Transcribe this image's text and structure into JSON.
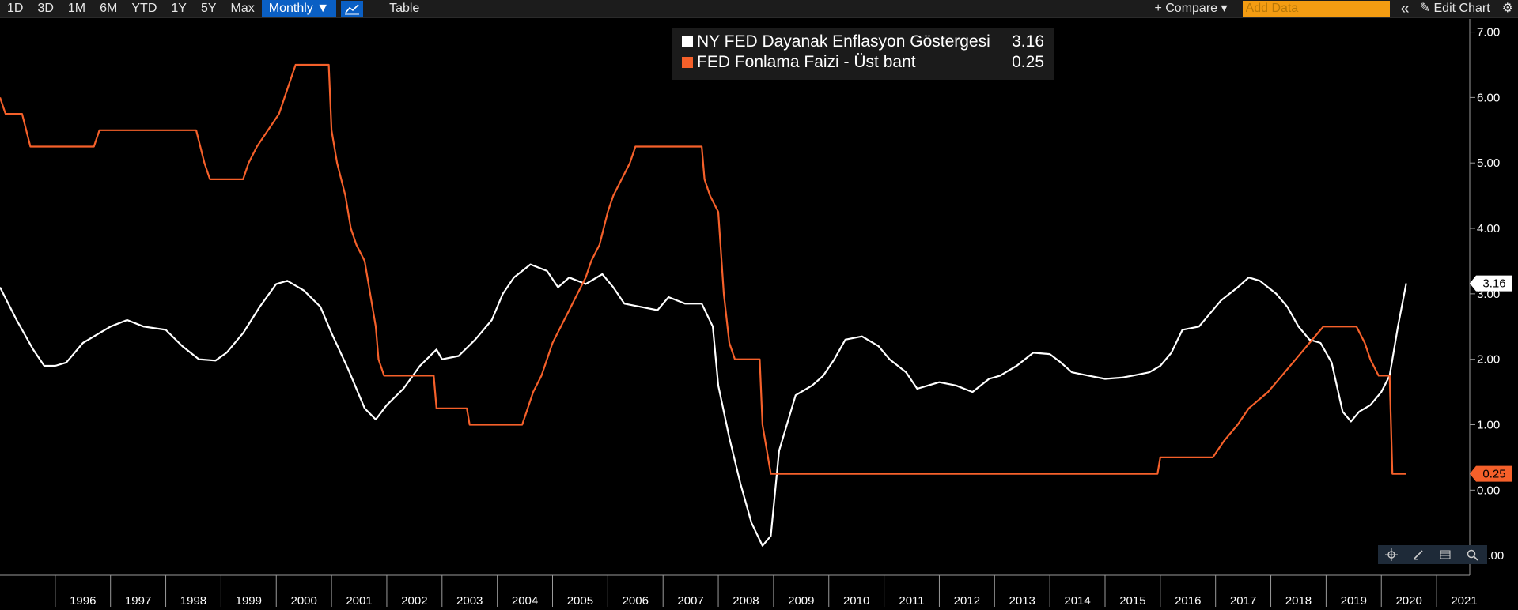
{
  "toolbar": {
    "ranges": [
      "1D",
      "3D",
      "1M",
      "6M",
      "YTD",
      "1Y",
      "5Y",
      "Max"
    ],
    "frequency": "Monthly ▼",
    "chart_icon": "line-chart-icon",
    "table_label": "Table",
    "compare_label": "+ Compare ▾",
    "add_data_placeholder": "Add Data",
    "collapse_glyph": "«",
    "edit_chart_label": "✎ Edit Chart",
    "settings_glyph": "⚙"
  },
  "legend": {
    "items": [
      {
        "label": "NY FED Dayanak Enflasyon Göstergesi",
        "value": "3.16",
        "color": "#ffffff"
      },
      {
        "label": "FED Fonlama Faizi - Üst bant",
        "value": "0.25",
        "color": "#f5602a"
      }
    ]
  },
  "zoom_tools": [
    "crosshair-icon",
    "draw-icon",
    "table-icon",
    "zoom-icon"
  ],
  "chart_data": {
    "type": "line",
    "title": "",
    "xlabel": "",
    "ylabel": "",
    "ylim": [
      -1.3,
      7.2
    ],
    "xlim": [
      1995.0,
      2021.6
    ],
    "yticks": [
      "7.00",
      "6.00",
      "5.00",
      "4.00",
      "3.00",
      "2.00",
      "1.00",
      "0.00",
      "-1.00"
    ],
    "ytick_values": [
      7,
      6,
      5,
      4,
      3,
      2,
      1,
      0,
      -1
    ],
    "xticks": [
      "1996",
      "1997",
      "1998",
      "1999",
      "2000",
      "2001",
      "2002",
      "2003",
      "2004",
      "2005",
      "2006",
      "2007",
      "2008",
      "2009",
      "2010",
      "2011",
      "2012",
      "2013",
      "2014",
      "2015",
      "2016",
      "2017",
      "2018",
      "2019",
      "2020",
      "2021"
    ],
    "xtick_values": [
      1996,
      1997,
      1998,
      1999,
      2000,
      2001,
      2002,
      2003,
      2004,
      2005,
      2006,
      2007,
      2008,
      2009,
      2010,
      2011,
      2012,
      2013,
      2014,
      2015,
      2016,
      2017,
      2018,
      2019,
      2020,
      2021
    ],
    "last_value_labels": [
      "3.16",
      "0.25"
    ],
    "series": [
      {
        "name": "NY FED Dayanak Enflasyon Göstergesi",
        "color": "#ffffff",
        "points": [
          [
            1995.0,
            3.1
          ],
          [
            1995.3,
            2.6
          ],
          [
            1995.6,
            2.15
          ],
          [
            1995.8,
            1.9
          ],
          [
            1996.0,
            1.9
          ],
          [
            1996.2,
            1.95
          ],
          [
            1996.5,
            2.25
          ],
          [
            1996.8,
            2.4
          ],
          [
            1997.0,
            2.5
          ],
          [
            1997.3,
            2.6
          ],
          [
            1997.6,
            2.5
          ],
          [
            1998.0,
            2.45
          ],
          [
            1998.3,
            2.2
          ],
          [
            1998.6,
            2.0
          ],
          [
            1998.9,
            1.98
          ],
          [
            1999.1,
            2.1
          ],
          [
            1999.4,
            2.4
          ],
          [
            1999.7,
            2.8
          ],
          [
            2000.0,
            3.15
          ],
          [
            2000.2,
            3.2
          ],
          [
            2000.5,
            3.05
          ],
          [
            2000.8,
            2.8
          ],
          [
            2001.0,
            2.4
          ],
          [
            2001.3,
            1.85
          ],
          [
            2001.6,
            1.25
          ],
          [
            2001.8,
            1.08
          ],
          [
            2002.0,
            1.3
          ],
          [
            2002.3,
            1.55
          ],
          [
            2002.6,
            1.9
          ],
          [
            2002.9,
            2.15
          ],
          [
            2003.0,
            2.0
          ],
          [
            2003.3,
            2.05
          ],
          [
            2003.6,
            2.3
          ],
          [
            2003.9,
            2.6
          ],
          [
            2004.1,
            3.0
          ],
          [
            2004.3,
            3.25
          ],
          [
            2004.6,
            3.45
          ],
          [
            2004.9,
            3.35
          ],
          [
            2005.1,
            3.1
          ],
          [
            2005.3,
            3.25
          ],
          [
            2005.6,
            3.15
          ],
          [
            2005.9,
            3.3
          ],
          [
            2006.1,
            3.1
          ],
          [
            2006.3,
            2.85
          ],
          [
            2006.6,
            2.8
          ],
          [
            2006.9,
            2.75
          ],
          [
            2007.1,
            2.95
          ],
          [
            2007.4,
            2.85
          ],
          [
            2007.7,
            2.85
          ],
          [
            2007.9,
            2.5
          ],
          [
            2008.0,
            1.6
          ],
          [
            2008.2,
            0.8
          ],
          [
            2008.4,
            0.1
          ],
          [
            2008.6,
            -0.5
          ],
          [
            2008.8,
            -0.85
          ],
          [
            2008.95,
            -0.7
          ],
          [
            2009.1,
            0.6
          ],
          [
            2009.4,
            1.45
          ],
          [
            2009.7,
            1.6
          ],
          [
            2009.9,
            1.75
          ],
          [
            2010.1,
            2.0
          ],
          [
            2010.3,
            2.3
          ],
          [
            2010.6,
            2.35
          ],
          [
            2010.9,
            2.2
          ],
          [
            2011.1,
            2.0
          ],
          [
            2011.4,
            1.8
          ],
          [
            2011.6,
            1.55
          ],
          [
            2011.8,
            1.6
          ],
          [
            2012.0,
            1.65
          ],
          [
            2012.3,
            1.6
          ],
          [
            2012.6,
            1.5
          ],
          [
            2012.9,
            1.7
          ],
          [
            2013.1,
            1.75
          ],
          [
            2013.4,
            1.9
          ],
          [
            2013.7,
            2.1
          ],
          [
            2014.0,
            2.08
          ],
          [
            2014.2,
            1.95
          ],
          [
            2014.4,
            1.8
          ],
          [
            2014.7,
            1.75
          ],
          [
            2015.0,
            1.7
          ],
          [
            2015.3,
            1.72
          ],
          [
            2015.5,
            1.75
          ],
          [
            2015.8,
            1.8
          ],
          [
            2016.0,
            1.9
          ],
          [
            2016.2,
            2.1
          ],
          [
            2016.4,
            2.45
          ],
          [
            2016.7,
            2.5
          ],
          [
            2016.9,
            2.7
          ],
          [
            2017.1,
            2.9
          ],
          [
            2017.4,
            3.1
          ],
          [
            2017.6,
            3.25
          ],
          [
            2017.8,
            3.2
          ],
          [
            2018.1,
            3.0
          ],
          [
            2018.3,
            2.8
          ],
          [
            2018.5,
            2.5
          ],
          [
            2018.7,
            2.3
          ],
          [
            2018.9,
            2.25
          ],
          [
            2019.1,
            1.95
          ],
          [
            2019.3,
            1.2
          ],
          [
            2019.45,
            1.05
          ],
          [
            2019.6,
            1.2
          ],
          [
            2019.8,
            1.3
          ],
          [
            2020.0,
            1.5
          ],
          [
            2020.15,
            1.75
          ],
          [
            2020.3,
            2.5
          ],
          [
            2020.45,
            3.16
          ]
        ]
      },
      {
        "name": "FED Fonlama Faizi - Üst bant",
        "color": "#f5602a",
        "points": [
          [
            1995.0,
            6.0
          ],
          [
            1995.1,
            5.75
          ],
          [
            1995.4,
            5.75
          ],
          [
            1995.55,
            5.25
          ],
          [
            1996.7,
            5.25
          ],
          [
            1996.8,
            5.5
          ],
          [
            1998.55,
            5.5
          ],
          [
            1998.7,
            5.0
          ],
          [
            1998.8,
            4.75
          ],
          [
            1999.4,
            4.75
          ],
          [
            1999.5,
            5.0
          ],
          [
            1999.65,
            5.25
          ],
          [
            1999.85,
            5.5
          ],
          [
            2000.05,
            5.75
          ],
          [
            2000.15,
            6.0
          ],
          [
            2000.35,
            6.5
          ],
          [
            2000.95,
            6.5
          ],
          [
            2001.0,
            5.5
          ],
          [
            2001.1,
            5.0
          ],
          [
            2001.25,
            4.5
          ],
          [
            2001.35,
            4.0
          ],
          [
            2001.45,
            3.75
          ],
          [
            2001.6,
            3.5
          ],
          [
            2001.7,
            3.0
          ],
          [
            2001.8,
            2.5
          ],
          [
            2001.85,
            2.0
          ],
          [
            2001.95,
            1.75
          ],
          [
            2002.85,
            1.75
          ],
          [
            2002.9,
            1.25
          ],
          [
            2003.45,
            1.25
          ],
          [
            2003.5,
            1.0
          ],
          [
            2004.45,
            1.0
          ],
          [
            2004.55,
            1.25
          ],
          [
            2004.65,
            1.5
          ],
          [
            2004.8,
            1.75
          ],
          [
            2004.9,
            2.0
          ],
          [
            2005.0,
            2.25
          ],
          [
            2005.15,
            2.5
          ],
          [
            2005.3,
            2.75
          ],
          [
            2005.45,
            3.0
          ],
          [
            2005.6,
            3.25
          ],
          [
            2005.7,
            3.5
          ],
          [
            2005.85,
            3.75
          ],
          [
            2006.0,
            4.25
          ],
          [
            2006.1,
            4.5
          ],
          [
            2006.25,
            4.75
          ],
          [
            2006.4,
            5.0
          ],
          [
            2006.5,
            5.25
          ],
          [
            2007.7,
            5.25
          ],
          [
            2007.75,
            4.75
          ],
          [
            2007.85,
            4.5
          ],
          [
            2008.0,
            4.25
          ],
          [
            2008.1,
            3.0
          ],
          [
            2008.2,
            2.25
          ],
          [
            2008.3,
            2.0
          ],
          [
            2008.75,
            2.0
          ],
          [
            2008.8,
            1.0
          ],
          [
            2008.95,
            0.25
          ],
          [
            2015.95,
            0.25
          ],
          [
            2016.0,
            0.5
          ],
          [
            2016.95,
            0.5
          ],
          [
            2017.15,
            0.75
          ],
          [
            2017.4,
            1.0
          ],
          [
            2017.6,
            1.25
          ],
          [
            2017.95,
            1.5
          ],
          [
            2018.2,
            1.75
          ],
          [
            2018.45,
            2.0
          ],
          [
            2018.7,
            2.25
          ],
          [
            2018.95,
            2.5
          ],
          [
            2019.55,
            2.5
          ],
          [
            2019.7,
            2.25
          ],
          [
            2019.8,
            2.0
          ],
          [
            2019.95,
            1.75
          ],
          [
            2020.15,
            1.75
          ],
          [
            2020.2,
            0.25
          ],
          [
            2020.45,
            0.25
          ]
        ]
      }
    ]
  }
}
